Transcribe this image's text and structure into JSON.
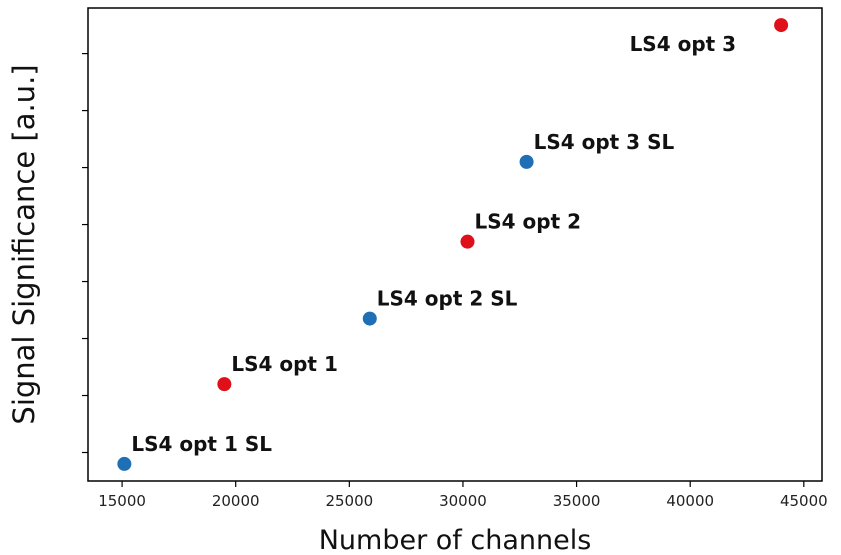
{
  "chart_data": {
    "type": "scatter",
    "title": "",
    "xlabel": "Number of channels",
    "ylabel": "Signal Significance [a.u.]",
    "xlim": [
      13500,
      45800
    ],
    "ylim": [
      0,
      8.3
    ],
    "xticks": [
      15000,
      20000,
      25000,
      30000,
      35000,
      40000,
      45000
    ],
    "xtick_labels": [
      "15000",
      "20000",
      "25000",
      "30000",
      "35000",
      "40000",
      "45000"
    ],
    "yticks": [
      0.5,
      1.5,
      2.5,
      3.5,
      4.5,
      5.5,
      6.5,
      7.5
    ],
    "ytick_labels": [
      "",
      "",
      "",
      "",
      "",
      "",
      "",
      ""
    ],
    "grid": false,
    "legend": "none",
    "points": [
      {
        "label": "LS4 opt 1 SL",
        "x": 15100,
        "y": 0.3,
        "color": "#1f6fb5"
      },
      {
        "label": "LS4 opt 1",
        "x": 19500,
        "y": 1.7,
        "color": "#e0101a"
      },
      {
        "label": "LS4 opt 2 SL",
        "x": 25900,
        "y": 2.85,
        "color": "#1f6fb5"
      },
      {
        "label": "LS4 opt 2",
        "x": 30200,
        "y": 4.2,
        "color": "#e0101a"
      },
      {
        "label": "LS4 opt 3 SL",
        "x": 32800,
        "y": 5.6,
        "color": "#1f6fb5"
      },
      {
        "label": "LS4 opt 3",
        "x": 44000,
        "y": 8.0,
        "color": "#e0101a"
      }
    ]
  }
}
